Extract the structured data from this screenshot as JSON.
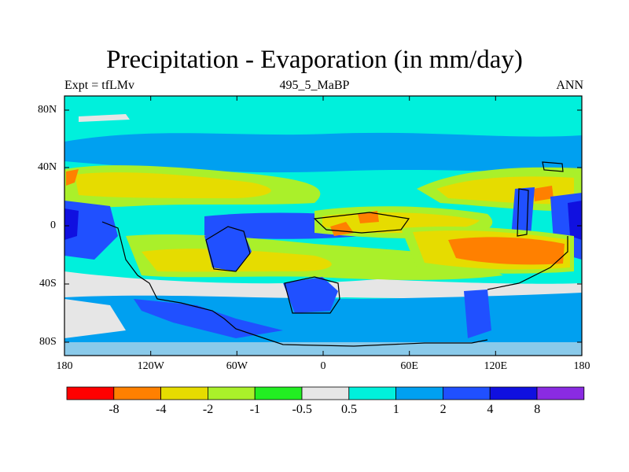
{
  "title": "Precipitation - Evaporation (in mm/day)",
  "subtitle_left": "Expt = tfLMv",
  "subtitle_center": "495_5_MaBP",
  "subtitle_right": "ANN",
  "lat_ticks": [
    "80N",
    "40N",
    "0",
    "40S",
    "80S"
  ],
  "lon_ticks": [
    "180",
    "120W",
    "60W",
    "0",
    "60E",
    "120E",
    "180"
  ],
  "colorbar": {
    "colors": [
      "#ff0000",
      "#ff8000",
      "#e6dc00",
      "#aaf02a",
      "#22ee22",
      "#e6e6e6",
      "#00f0dc",
      "#00a0f0",
      "#2050ff",
      "#1010e0",
      "#8a2be2"
    ],
    "labels": [
      "-8",
      "-4",
      "-2",
      "-1",
      "-0.5",
      "0.5",
      "1",
      "2",
      "4",
      "8"
    ]
  },
  "palette": {
    "bg_cyan": "#00f0dc",
    "light_blue": "#00a0f0",
    "mid_blue": "#2050ff",
    "dark_blue": "#1010e0",
    "grey": "#e6e6e6",
    "green": "#22ee22",
    "light_green": "#aaf02a",
    "yellow": "#e6dc00",
    "orange": "#ff8000",
    "red": "#ff0000"
  }
}
